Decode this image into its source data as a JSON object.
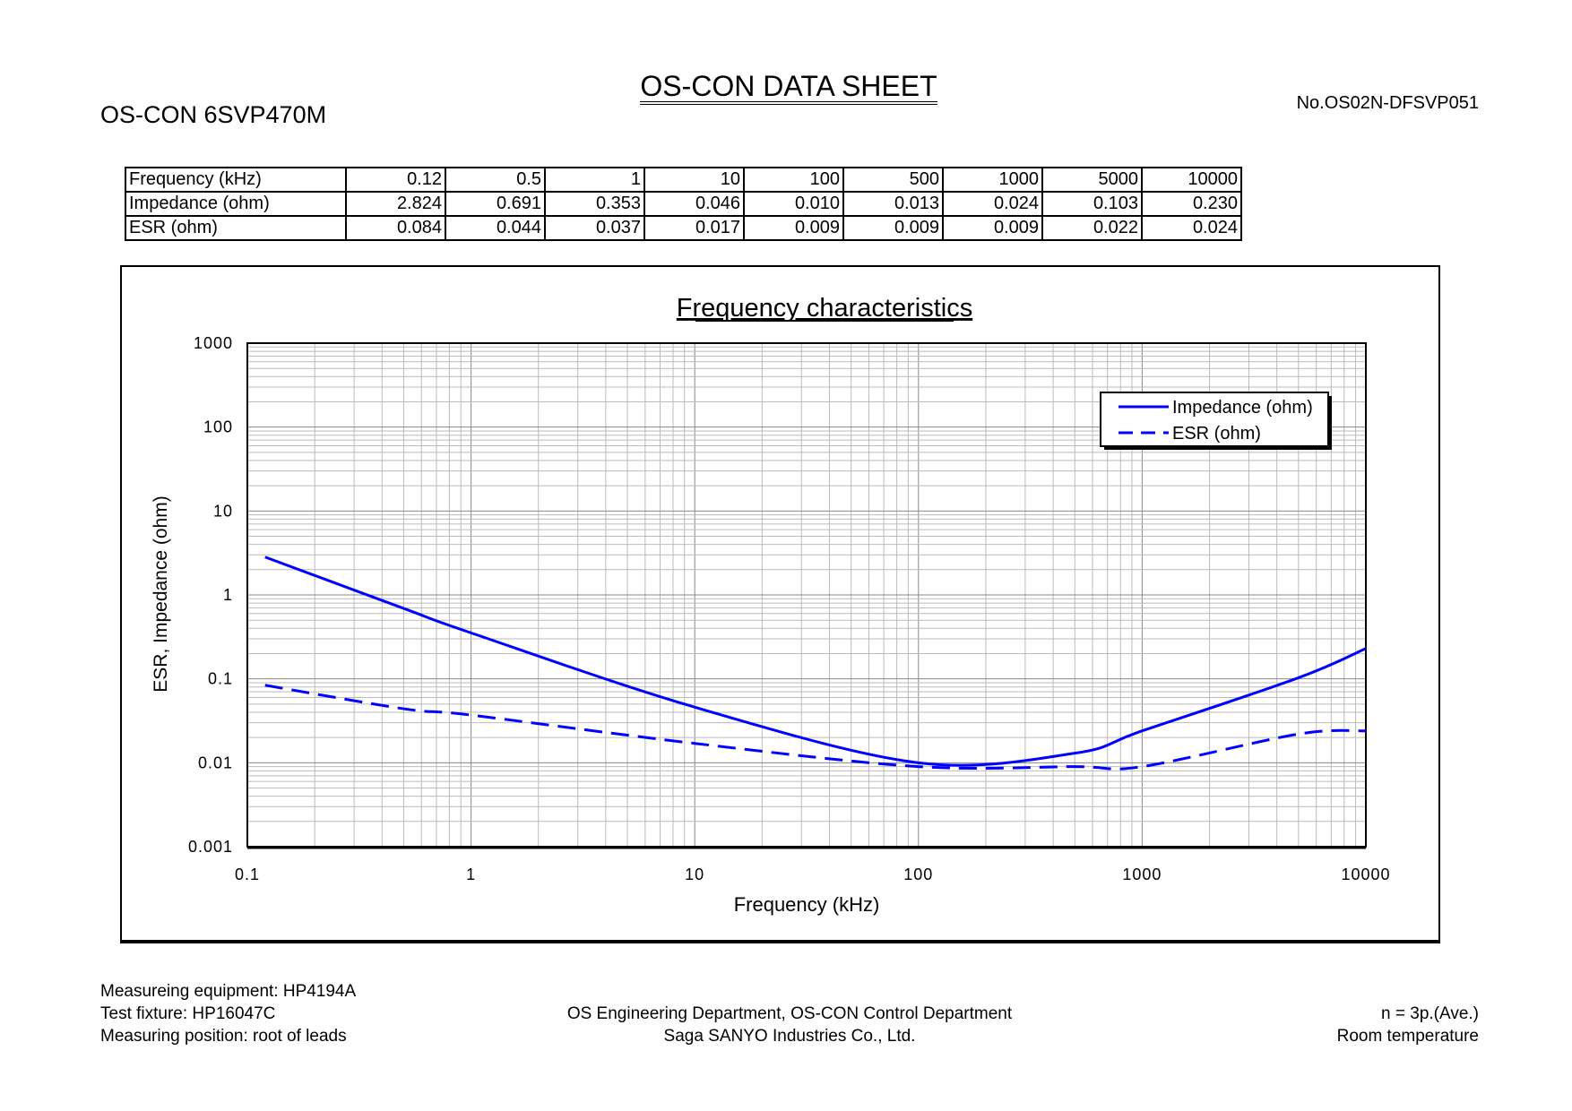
{
  "header": {
    "title": "OS-CON DATA SHEET",
    "model": "OS-CON 6SVP470M",
    "document_number": "No.OS02N-DFSVP051"
  },
  "table": {
    "rows": [
      {
        "label": "Frequency (kHz)",
        "values": [
          "0.12",
          "0.5",
          "1",
          "10",
          "100",
          "500",
          "1000",
          "5000",
          "10000"
        ]
      },
      {
        "label": "Impedance (ohm)",
        "values": [
          "2.824",
          "0.691",
          "0.353",
          "0.046",
          "0.010",
          "0.013",
          "0.024",
          "0.103",
          "0.230"
        ]
      },
      {
        "label": "ESR (ohm)",
        "values": [
          "0.084",
          "0.044",
          "0.037",
          "0.017",
          "0.009",
          "0.009",
          "0.009",
          "0.022",
          "0.024"
        ]
      }
    ]
  },
  "chart_data": {
    "type": "line",
    "title": "Frequency characteristics",
    "xlabel": "Frequency (kHz)",
    "ylabel": "ESR, Impedance (ohm)",
    "xscale": "log",
    "yscale": "log",
    "xlim": [
      0.1,
      10000
    ],
    "ylim": [
      0.001,
      1000
    ],
    "xticks": [
      "0.1",
      "1",
      "10",
      "100",
      "1000",
      "10000"
    ],
    "yticks": [
      "1000",
      "100",
      "10",
      "1",
      "0.1",
      "0.01",
      "0.001"
    ],
    "grid": true,
    "legend_position": "top-right",
    "x": [
      0.12,
      0.5,
      1,
      10,
      100,
      500,
      1000,
      5000,
      10000
    ],
    "series": [
      {
        "name": "Impedance (ohm)",
        "style": "solid",
        "color": "#0000ff",
        "values": [
          2.824,
          0.691,
          0.353,
          0.046,
          0.01,
          0.013,
          0.024,
          0.103,
          0.23
        ]
      },
      {
        "name": "ESR (ohm)",
        "style": "dashed",
        "color": "#0000ff",
        "values": [
          0.084,
          0.044,
          0.037,
          0.017,
          0.009,
          0.009,
          0.009,
          0.022,
          0.024
        ]
      }
    ]
  },
  "footer": {
    "left": [
      "Measureing equipment: HP4194A",
      "Test fixture: HP16047C",
      "Measuring position: root of leads"
    ],
    "center": [
      "OS Engineering Department, OS-CON Control Department",
      "Saga SANYO Industries Co., Ltd."
    ],
    "right": [
      "n = 3p.(Ave.)",
      "Room temperature"
    ]
  }
}
